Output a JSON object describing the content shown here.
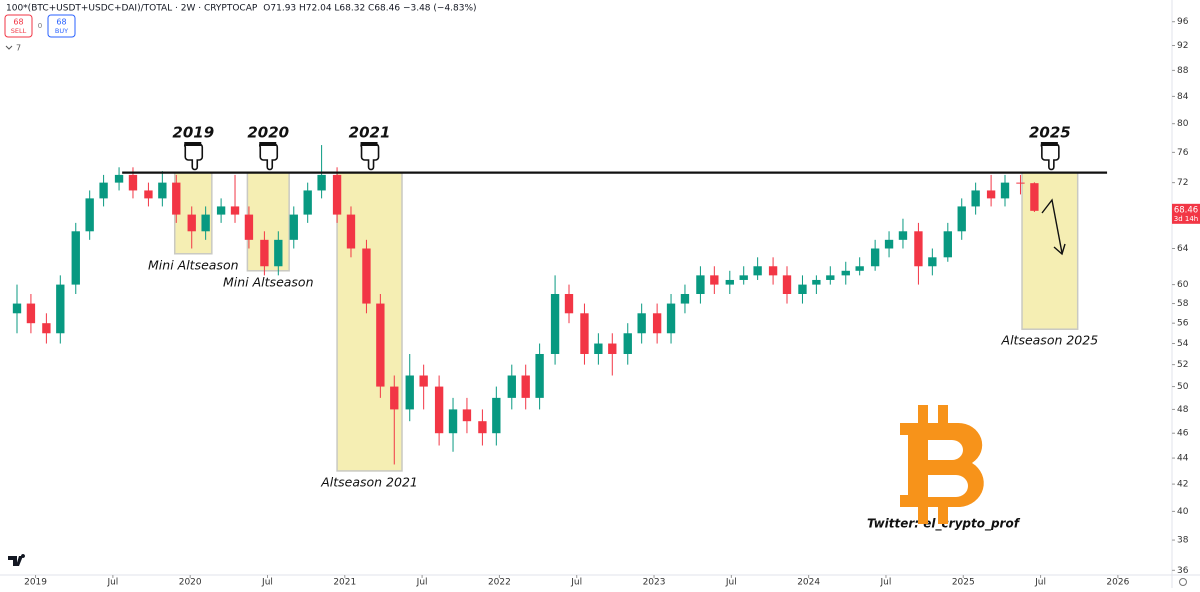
{
  "header": {
    "symbol": "100*(BTC+USDT+USDC+DAI)/TOTAL · 2W · CRYPTOCAP",
    "ohlc": "O71.93 H72.04 L68.32 C68.46 −3.48 (−4.83%)",
    "sell_price": "68",
    "sell": "SELL",
    "buy_price": "68",
    "buy": "BUY",
    "indicators": "7"
  },
  "chart_data": {
    "type": "candlestick",
    "log_scale": true,
    "grid": false,
    "colors": {
      "up": "#089981",
      "down": "#f23645"
    },
    "xlim": [
      2018.77,
      2026.35
    ],
    "ylim": [
      35.7,
      99.8
    ],
    "xticks": [
      {
        "value": 2019,
        "label": "2019"
      },
      {
        "value": 2019.5,
        "label": "Jul"
      },
      {
        "value": 2020,
        "label": "2020"
      },
      {
        "value": 2020.5,
        "label": "Jul"
      },
      {
        "value": 2021,
        "label": "2021"
      },
      {
        "value": 2021.5,
        "label": "Jul"
      },
      {
        "value": 2022,
        "label": "2022"
      },
      {
        "value": 2022.5,
        "label": "Jul"
      },
      {
        "value": 2023,
        "label": "2023"
      },
      {
        "value": 2023.5,
        "label": "Jul"
      },
      {
        "value": 2024,
        "label": "2024"
      },
      {
        "value": 2024.5,
        "label": "Jul"
      },
      {
        "value": 2025,
        "label": "2025"
      },
      {
        "value": 2025.5,
        "label": "Jul"
      },
      {
        "value": 2026,
        "label": "2026"
      }
    ],
    "yticks": [
      96,
      92,
      88,
      84,
      80,
      76,
      72,
      64,
      60,
      58,
      56,
      54,
      52,
      50,
      48,
      46,
      44,
      42,
      40,
      38,
      36
    ],
    "x": [
      2018.88,
      2018.97,
      2019.07,
      2019.16,
      2019.26,
      2019.35,
      2019.44,
      2019.54,
      2019.63,
      2019.73,
      2019.82,
      2019.91,
      2020.01,
      2020.1,
      2020.2,
      2020.29,
      2020.38,
      2020.48,
      2020.57,
      2020.67,
      2020.76,
      2020.85,
      2020.95,
      2021.04,
      2021.14,
      2021.23,
      2021.32,
      2021.42,
      2021.51,
      2021.61,
      2021.7,
      2021.79,
      2021.89,
      2021.98,
      2022.08,
      2022.17,
      2022.26,
      2022.36,
      2022.45,
      2022.55,
      2022.64,
      2022.73,
      2022.83,
      2022.92,
      2023.02,
      2023.11,
      2023.2,
      2023.3,
      2023.39,
      2023.49,
      2023.58,
      2023.67,
      2023.77,
      2023.86,
      2023.96,
      2024.05,
      2024.14,
      2024.24,
      2024.33,
      2024.43,
      2024.52,
      2024.61,
      2024.71,
      2024.8,
      2024.9,
      2024.99,
      2025.08,
      2025.18,
      2025.27,
      2025.37,
      2025.46
    ],
    "open": [
      57,
      58,
      56,
      55,
      60,
      66,
      70,
      72,
      73,
      71,
      70,
      72,
      68,
      66,
      68,
      69,
      68,
      65,
      62,
      65,
      68,
      71,
      73,
      68,
      64,
      58,
      50,
      48,
      51,
      50,
      46,
      48,
      47,
      46,
      49,
      51,
      49,
      53,
      59,
      57,
      53,
      54,
      53,
      55,
      57,
      55,
      58,
      59,
      61,
      60,
      60.5,
      61,
      62,
      61,
      59,
      60,
      60.5,
      61,
      61.5,
      62,
      64,
      65,
      66,
      62,
      63,
      66,
      69,
      71,
      70,
      72,
      71.93
    ],
    "high": [
      60,
      59,
      57,
      61,
      67,
      71,
      73,
      74,
      74,
      72,
      73.5,
      73,
      69,
      69,
      70,
      73,
      69,
      66,
      66,
      69,
      72,
      77,
      74,
      69,
      65,
      59,
      51,
      53,
      52,
      51,
      49,
      49,
      48,
      50,
      52,
      52,
      54,
      61,
      60,
      58,
      55,
      55,
      56,
      58,
      58,
      59,
      60,
      62,
      62,
      61.5,
      62,
      63,
      63,
      62,
      61,
      61,
      62,
      62.5,
      63,
      65,
      66,
      67.5,
      67,
      64,
      67,
      70,
      72,
      73,
      73,
      73,
      72.04
    ],
    "low": [
      55,
      55,
      54,
      54,
      59,
      65,
      69,
      71,
      70,
      69,
      69,
      67,
      64,
      65,
      67,
      67,
      64,
      61,
      61,
      64,
      67,
      70,
      67,
      63,
      57,
      49,
      43.5,
      47,
      48,
      45,
      44.5,
      46,
      45,
      45,
      48,
      48,
      48,
      52,
      56,
      52,
      52,
      51,
      52,
      54,
      54,
      54,
      57,
      58,
      59,
      59,
      60,
      60.5,
      60,
      58,
      58,
      59,
      60,
      60,
      61,
      61.5,
      63,
      64,
      60,
      61,
      62.5,
      65,
      68,
      69,
      69,
      70.5,
      68.32
    ],
    "close": [
      58,
      56,
      55,
      60,
      66,
      70,
      72,
      73,
      71,
      70,
      72,
      68,
      66,
      68,
      69,
      68,
      65,
      62,
      65,
      68,
      71,
      73,
      68,
      64,
      58,
      50,
      48,
      51,
      50,
      46,
      48,
      47,
      46,
      49,
      51,
      49,
      53,
      59,
      57,
      53,
      54,
      53,
      55,
      57,
      55,
      58,
      59,
      61,
      60,
      60.5,
      61,
      62,
      61,
      59,
      60,
      60.5,
      61,
      61.5,
      62,
      64,
      65,
      66,
      62,
      63,
      66,
      69,
      71,
      70,
      72,
      71.93,
      68.46
    ],
    "countdown": "3d 14h",
    "resistance": {
      "value": 73.3,
      "x": [
        2019.56,
        2025.93
      ]
    },
    "zones": [
      {
        "year": "2019",
        "label": "Mini Altseason",
        "x": [
          2019.9,
          2020.14
        ],
        "y": [
          63.4,
          73.3
        ]
      },
      {
        "year": "2020",
        "label": "Mini Altseason",
        "x": [
          2020.37,
          2020.64
        ],
        "y": [
          61.5,
          73.3
        ]
      },
      {
        "year": "2021",
        "label": "Altseason 2021",
        "x": [
          2020.95,
          2021.37
        ],
        "y": [
          43,
          73.3
        ]
      },
      {
        "year": "2025",
        "label": "Altseason 2025",
        "x": [
          2025.38,
          2025.74
        ],
        "y": [
          55.4,
          73.3
        ]
      }
    ],
    "annotation": "Twitter: el_crypto_prof"
  }
}
